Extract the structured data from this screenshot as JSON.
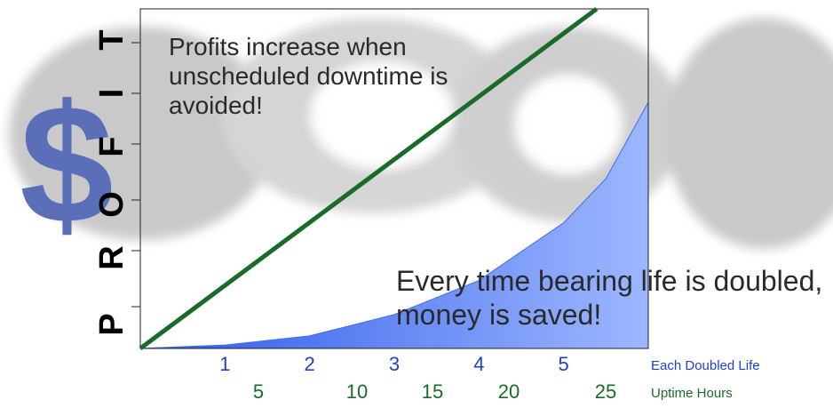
{
  "chart_data": {
    "type": "line",
    "annotations": [
      "Profits increase when unscheduled downtime is avoided!",
      "Every time bearing life is doubled, money is saved!"
    ],
    "symbol": "$",
    "ylabel": [
      "P",
      "R",
      "O",
      "F",
      "I",
      "T"
    ],
    "xlabel": "Each Doubled Life",
    "x2label": "Uptime Hours",
    "xlim": [
      0,
      6
    ],
    "ylim": [
      0,
      100
    ],
    "xticks": [
      1,
      2,
      3,
      4,
      5
    ],
    "x2ticks": [
      5,
      10,
      15,
      20,
      25
    ],
    "series": [
      {
        "color": "#3b6cf0",
        "fill": true,
        "x": [
          0,
          1,
          2,
          3,
          4,
          5,
          5.5,
          6
        ],
        "values": [
          0,
          1,
          3.7,
          10,
          20,
          37,
          50,
          72.5
        ]
      },
      {
        "color": "#1a6b2a",
        "fill": false,
        "x": [
          0,
          5.39
        ],
        "values": [
          0,
          100
        ]
      }
    ]
  }
}
